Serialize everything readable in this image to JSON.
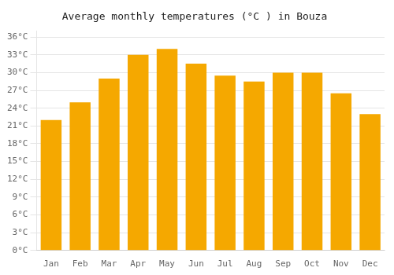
{
  "chart_data": {
    "type": "bar",
    "title": "Average monthly temperatures (°C ) in Bouza",
    "categories": [
      "Jan",
      "Feb",
      "Mar",
      "Apr",
      "May",
      "Jun",
      "Jul",
      "Aug",
      "Sep",
      "Oct",
      "Nov",
      "Dec"
    ],
    "values": [
      22,
      25,
      29,
      33,
      34,
      31.5,
      29.5,
      28.5,
      30,
      30,
      26.5,
      23
    ],
    "color": "#F5A800",
    "ylim": [
      0,
      37
    ],
    "yticks": [
      {
        "value": 0,
        "label": "0°C"
      },
      {
        "value": 3,
        "label": "3°C"
      },
      {
        "value": 6,
        "label": "6°C"
      },
      {
        "value": 9,
        "label": "9°C"
      },
      {
        "value": 12,
        "label": "12°C"
      },
      {
        "value": 15,
        "label": "15°C"
      },
      {
        "value": 18,
        "label": "18°C"
      },
      {
        "value": 21,
        "label": "21°C"
      },
      {
        "value": 24,
        "label": "24°C"
      },
      {
        "value": 27,
        "label": "27°C"
      },
      {
        "value": 30,
        "label": "30°C"
      },
      {
        "value": 33,
        "label": "33°C"
      },
      {
        "value": 36,
        "label": "36°C"
      }
    ],
    "grid": true
  }
}
